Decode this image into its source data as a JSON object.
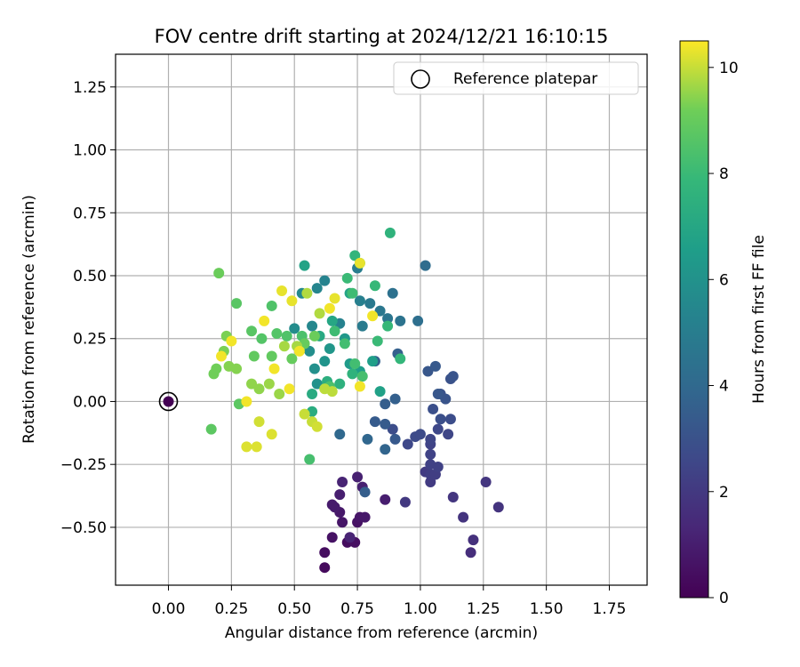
{
  "chart_data": {
    "type": "scatter",
    "title": "FOV centre drift starting at 2024/12/21 16:10:15",
    "xlabel": "Angular distance from reference (arcmin)",
    "ylabel": "Rotation from reference (arcmin)",
    "xlim": [
      -0.21,
      1.9
    ],
    "ylim": [
      -0.73,
      1.38
    ],
    "xticks": [
      "0.00",
      "0.25",
      "0.50",
      "0.75",
      "1.00",
      "1.25",
      "1.50",
      "1.75"
    ],
    "xtick_values": [
      0,
      0.25,
      0.5,
      0.75,
      1.0,
      1.25,
      1.5,
      1.75
    ],
    "yticks": [
      "−0.50",
      "−0.25",
      "0.00",
      "0.25",
      "0.50",
      "0.75",
      "1.00",
      "1.25"
    ],
    "ytick_values": [
      -0.5,
      -0.25,
      0,
      0.25,
      0.5,
      0.75,
      1.0,
      1.25
    ],
    "grid": true,
    "legend": {
      "position": "top-right",
      "entries": [
        "Reference platepar"
      ]
    },
    "reference_point": {
      "x": 0,
      "y": 0,
      "label": "Reference platepar"
    },
    "colorbar": {
      "label": "Hours from first FF file",
      "colormap": "viridis",
      "range": [
        0,
        10.5
      ],
      "ticks": [
        "0",
        "2",
        "4",
        "6",
        "8",
        "10"
      ],
      "tick_values": [
        0,
        2,
        4,
        6,
        8,
        10
      ]
    },
    "series": [
      {
        "points": [
          {
            "x": 0.0,
            "y": 0.0,
            "c": 0.0
          },
          {
            "x": 0.62,
            "y": -0.66,
            "c": 0.3
          },
          {
            "x": 0.62,
            "y": -0.6,
            "c": 0.4
          },
          {
            "x": 0.71,
            "y": -0.56,
            "c": 0.4
          },
          {
            "x": 0.74,
            "y": -0.56,
            "c": 0.5
          },
          {
            "x": 0.65,
            "y": -0.54,
            "c": 0.6
          },
          {
            "x": 0.75,
            "y": -0.48,
            "c": 0.6
          },
          {
            "x": 0.69,
            "y": -0.48,
            "c": 0.7
          },
          {
            "x": 0.76,
            "y": -0.46,
            "c": 0.7
          },
          {
            "x": 0.78,
            "y": -0.46,
            "c": 0.8
          },
          {
            "x": 0.68,
            "y": -0.44,
            "c": 0.8
          },
          {
            "x": 0.66,
            "y": -0.42,
            "c": 0.9
          },
          {
            "x": 0.65,
            "y": -0.41,
            "c": 0.9
          },
          {
            "x": 0.68,
            "y": -0.37,
            "c": 1.0
          },
          {
            "x": 0.86,
            "y": -0.39,
            "c": 1.0
          },
          {
            "x": 0.77,
            "y": -0.34,
            "c": 1.1
          },
          {
            "x": 0.75,
            "y": -0.3,
            "c": 1.1
          },
          {
            "x": 0.69,
            "y": -0.32,
            "c": 1.2
          },
          {
            "x": 0.72,
            "y": -0.54,
            "c": 1.2
          },
          {
            "x": 1.2,
            "y": -0.6,
            "c": 1.6
          },
          {
            "x": 1.21,
            "y": -0.55,
            "c": 1.7
          },
          {
            "x": 1.17,
            "y": -0.46,
            "c": 1.8
          },
          {
            "x": 1.31,
            "y": -0.42,
            "c": 1.8
          },
          {
            "x": 1.26,
            "y": -0.32,
            "c": 1.9
          },
          {
            "x": 1.13,
            "y": -0.38,
            "c": 1.9
          },
          {
            "x": 0.94,
            "y": -0.4,
            "c": 2.0
          },
          {
            "x": 1.04,
            "y": -0.32,
            "c": 2.1
          },
          {
            "x": 1.02,
            "y": -0.28,
            "c": 2.1
          },
          {
            "x": 1.04,
            "y": -0.29,
            "c": 2.2
          },
          {
            "x": 1.06,
            "y": -0.29,
            "c": 2.2
          },
          {
            "x": 1.07,
            "y": -0.26,
            "c": 2.3
          },
          {
            "x": 1.04,
            "y": -0.25,
            "c": 2.3
          },
          {
            "x": 1.04,
            "y": -0.21,
            "c": 2.4
          },
          {
            "x": 1.04,
            "y": -0.17,
            "c": 2.4
          },
          {
            "x": 1.04,
            "y": -0.15,
            "c": 2.5
          },
          {
            "x": 1.11,
            "y": -0.13,
            "c": 2.5
          },
          {
            "x": 1.07,
            "y": -0.11,
            "c": 2.6
          },
          {
            "x": 0.95,
            "y": -0.17,
            "c": 2.6
          },
          {
            "x": 0.98,
            "y": -0.14,
            "c": 2.7
          },
          {
            "x": 1.0,
            "y": -0.13,
            "c": 2.7
          },
          {
            "x": 0.89,
            "y": -0.11,
            "c": 2.8
          },
          {
            "x": 1.12,
            "y": -0.07,
            "c": 2.8
          },
          {
            "x": 1.08,
            "y": -0.07,
            "c": 2.9
          },
          {
            "x": 1.05,
            "y": -0.03,
            "c": 2.9
          },
          {
            "x": 1.08,
            "y": 0.03,
            "c": 3.0
          },
          {
            "x": 1.12,
            "y": 0.09,
            "c": 3.0
          },
          {
            "x": 1.13,
            "y": 0.1,
            "c": 3.1
          },
          {
            "x": 1.1,
            "y": 0.01,
            "c": 3.1
          },
          {
            "x": 1.07,
            "y": 0.03,
            "c": 3.2
          },
          {
            "x": 1.03,
            "y": 0.12,
            "c": 3.2
          },
          {
            "x": 1.06,
            "y": 0.14,
            "c": 3.3
          },
          {
            "x": 0.9,
            "y": -0.15,
            "c": 3.3
          },
          {
            "x": 0.86,
            "y": -0.09,
            "c": 3.4
          },
          {
            "x": 0.82,
            "y": -0.08,
            "c": 3.4
          },
          {
            "x": 0.78,
            "y": -0.36,
            "c": 3.5
          },
          {
            "x": 0.86,
            "y": -0.01,
            "c": 3.5
          },
          {
            "x": 0.9,
            "y": 0.01,
            "c": 3.6
          },
          {
            "x": 0.91,
            "y": 0.19,
            "c": 3.6
          },
          {
            "x": 0.82,
            "y": 0.16,
            "c": 3.7
          },
          {
            "x": 0.86,
            "y": -0.19,
            "c": 3.8
          },
          {
            "x": 0.79,
            "y": -0.15,
            "c": 3.9
          },
          {
            "x": 0.68,
            "y": -0.13,
            "c": 4.0
          },
          {
            "x": 1.02,
            "y": 0.54,
            "c": 4.2
          },
          {
            "x": 0.99,
            "y": 0.32,
            "c": 4.3
          },
          {
            "x": 0.89,
            "y": 0.43,
            "c": 4.4
          },
          {
            "x": 0.92,
            "y": 0.32,
            "c": 4.5
          },
          {
            "x": 0.87,
            "y": 0.33,
            "c": 4.6
          },
          {
            "x": 0.84,
            "y": 0.36,
            "c": 4.7
          },
          {
            "x": 0.8,
            "y": 0.39,
            "c": 4.8
          },
          {
            "x": 0.77,
            "y": 0.3,
            "c": 4.9
          },
          {
            "x": 0.75,
            "y": 0.53,
            "c": 5.0
          },
          {
            "x": 0.76,
            "y": 0.4,
            "c": 5.1
          },
          {
            "x": 0.68,
            "y": 0.31,
            "c": 5.2
          },
          {
            "x": 0.62,
            "y": 0.48,
            "c": 5.3
          },
          {
            "x": 0.59,
            "y": 0.45,
            "c": 5.4
          },
          {
            "x": 0.57,
            "y": 0.3,
            "c": 5.5
          },
          {
            "x": 0.53,
            "y": 0.43,
            "c": 5.6
          },
          {
            "x": 0.5,
            "y": 0.29,
            "c": 5.7
          },
          {
            "x": 0.56,
            "y": 0.2,
            "c": 5.8
          },
          {
            "x": 0.58,
            "y": 0.13,
            "c": 5.9
          },
          {
            "x": 0.59,
            "y": 0.07,
            "c": 6.0
          },
          {
            "x": 0.62,
            "y": 0.16,
            "c": 6.1
          },
          {
            "x": 0.64,
            "y": 0.21,
            "c": 6.2
          },
          {
            "x": 0.7,
            "y": 0.25,
            "c": 6.3
          },
          {
            "x": 0.72,
            "y": 0.15,
            "c": 6.4
          },
          {
            "x": 0.76,
            "y": 0.12,
            "c": 6.5
          },
          {
            "x": 0.81,
            "y": 0.16,
            "c": 6.6
          },
          {
            "x": 0.84,
            "y": 0.04,
            "c": 6.7
          },
          {
            "x": 0.54,
            "y": 0.54,
            "c": 6.8
          },
          {
            "x": 0.72,
            "y": 0.43,
            "c": 6.9
          },
          {
            "x": 0.65,
            "y": 0.32,
            "c": 7.0
          },
          {
            "x": 0.6,
            "y": 0.26,
            "c": 7.1
          },
          {
            "x": 0.57,
            "y": 0.03,
            "c": 7.2
          },
          {
            "x": 0.57,
            "y": -0.04,
            "c": 7.3
          },
          {
            "x": 0.63,
            "y": 0.08,
            "c": 7.4
          },
          {
            "x": 0.68,
            "y": 0.07,
            "c": 7.5
          },
          {
            "x": 0.73,
            "y": 0.11,
            "c": 7.6
          },
          {
            "x": 0.88,
            "y": 0.67,
            "c": 7.6
          },
          {
            "x": 0.74,
            "y": 0.58,
            "c": 7.7
          },
          {
            "x": 0.76,
            "y": 0.55,
            "c": 7.8
          },
          {
            "x": 0.92,
            "y": 0.17,
            "c": 7.8
          },
          {
            "x": 0.82,
            "y": 0.46,
            "c": 7.9
          },
          {
            "x": 0.87,
            "y": 0.3,
            "c": 7.9
          },
          {
            "x": 0.83,
            "y": 0.24,
            "c": 8.0
          },
          {
            "x": 0.71,
            "y": 0.49,
            "c": 8.0
          },
          {
            "x": 0.73,
            "y": 0.43,
            "c": 8.1
          },
          {
            "x": 0.66,
            "y": 0.28,
            "c": 8.1
          },
          {
            "x": 0.7,
            "y": 0.23,
            "c": 8.2
          },
          {
            "x": 0.74,
            "y": 0.15,
            "c": 8.2
          },
          {
            "x": 0.77,
            "y": 0.1,
            "c": 8.3
          },
          {
            "x": 0.56,
            "y": -0.23,
            "c": 8.3
          },
          {
            "x": 0.64,
            "y": 0.06,
            "c": 8.4
          },
          {
            "x": 0.53,
            "y": 0.26,
            "c": 8.4
          },
          {
            "x": 0.47,
            "y": 0.26,
            "c": 8.5
          },
          {
            "x": 0.41,
            "y": 0.38,
            "c": 8.5
          },
          {
            "x": 0.43,
            "y": 0.27,
            "c": 8.6
          },
          {
            "x": 0.37,
            "y": 0.25,
            "c": 8.6
          },
          {
            "x": 0.33,
            "y": 0.28,
            "c": 8.7
          },
          {
            "x": 0.27,
            "y": 0.39,
            "c": 8.7
          },
          {
            "x": 0.17,
            "y": -0.11,
            "c": 8.8
          },
          {
            "x": 0.28,
            "y": -0.01,
            "c": 8.8
          },
          {
            "x": 0.34,
            "y": 0.18,
            "c": 8.9
          },
          {
            "x": 0.41,
            "y": 0.18,
            "c": 8.9
          },
          {
            "x": 0.49,
            "y": 0.17,
            "c": 9.0
          },
          {
            "x": 0.54,
            "y": 0.23,
            "c": 9.0
          },
          {
            "x": 0.58,
            "y": 0.26,
            "c": 9.1
          },
          {
            "x": 0.2,
            "y": 0.51,
            "c": 9.1
          },
          {
            "x": 0.18,
            "y": 0.11,
            "c": 9.2
          },
          {
            "x": 0.19,
            "y": 0.13,
            "c": 9.2
          },
          {
            "x": 0.23,
            "y": 0.26,
            "c": 9.3
          },
          {
            "x": 0.22,
            "y": 0.2,
            "c": 9.3
          },
          {
            "x": 0.24,
            "y": 0.14,
            "c": 9.4
          },
          {
            "x": 0.27,
            "y": 0.13,
            "c": 9.4
          },
          {
            "x": 0.33,
            "y": 0.07,
            "c": 9.5
          },
          {
            "x": 0.36,
            "y": 0.05,
            "c": 9.5
          },
          {
            "x": 0.4,
            "y": 0.07,
            "c": 9.6
          },
          {
            "x": 0.44,
            "y": 0.03,
            "c": 9.6
          },
          {
            "x": 0.46,
            "y": 0.22,
            "c": 9.7
          },
          {
            "x": 0.51,
            "y": 0.22,
            "c": 9.7
          },
          {
            "x": 0.55,
            "y": 0.43,
            "c": 9.8
          },
          {
            "x": 0.6,
            "y": 0.35,
            "c": 9.8
          },
          {
            "x": 0.62,
            "y": 0.05,
            "c": 9.9
          },
          {
            "x": 0.65,
            "y": 0.04,
            "c": 9.9
          },
          {
            "x": 0.54,
            "y": -0.05,
            "c": 10.0
          },
          {
            "x": 0.57,
            "y": -0.08,
            "c": 10.0
          },
          {
            "x": 0.59,
            "y": -0.1,
            "c": 10.1
          },
          {
            "x": 0.36,
            "y": -0.08,
            "c": 10.1
          },
          {
            "x": 0.31,
            "y": -0.18,
            "c": 10.2
          },
          {
            "x": 0.35,
            "y": -0.18,
            "c": 10.2
          },
          {
            "x": 0.41,
            "y": -0.13,
            "c": 10.2
          },
          {
            "x": 0.45,
            "y": 0.44,
            "c": 10.3
          },
          {
            "x": 0.49,
            "y": 0.4,
            "c": 10.3
          },
          {
            "x": 0.66,
            "y": 0.41,
            "c": 10.3
          },
          {
            "x": 0.76,
            "y": 0.55,
            "c": 10.3
          },
          {
            "x": 0.81,
            "y": 0.34,
            "c": 10.4
          },
          {
            "x": 0.76,
            "y": 0.06,
            "c": 10.4
          },
          {
            "x": 0.64,
            "y": 0.37,
            "c": 10.4
          },
          {
            "x": 0.38,
            "y": 0.32,
            "c": 10.4
          },
          {
            "x": 0.25,
            "y": 0.24,
            "c": 10.4
          },
          {
            "x": 0.21,
            "y": 0.18,
            "c": 10.4
          },
          {
            "x": 0.31,
            "y": 0.0,
            "c": 10.4
          },
          {
            "x": 0.42,
            "y": 0.13,
            "c": 10.4
          },
          {
            "x": 0.48,
            "y": 0.05,
            "c": 10.4
          },
          {
            "x": 0.52,
            "y": 0.2,
            "c": 10.4
          }
        ]
      }
    ]
  }
}
